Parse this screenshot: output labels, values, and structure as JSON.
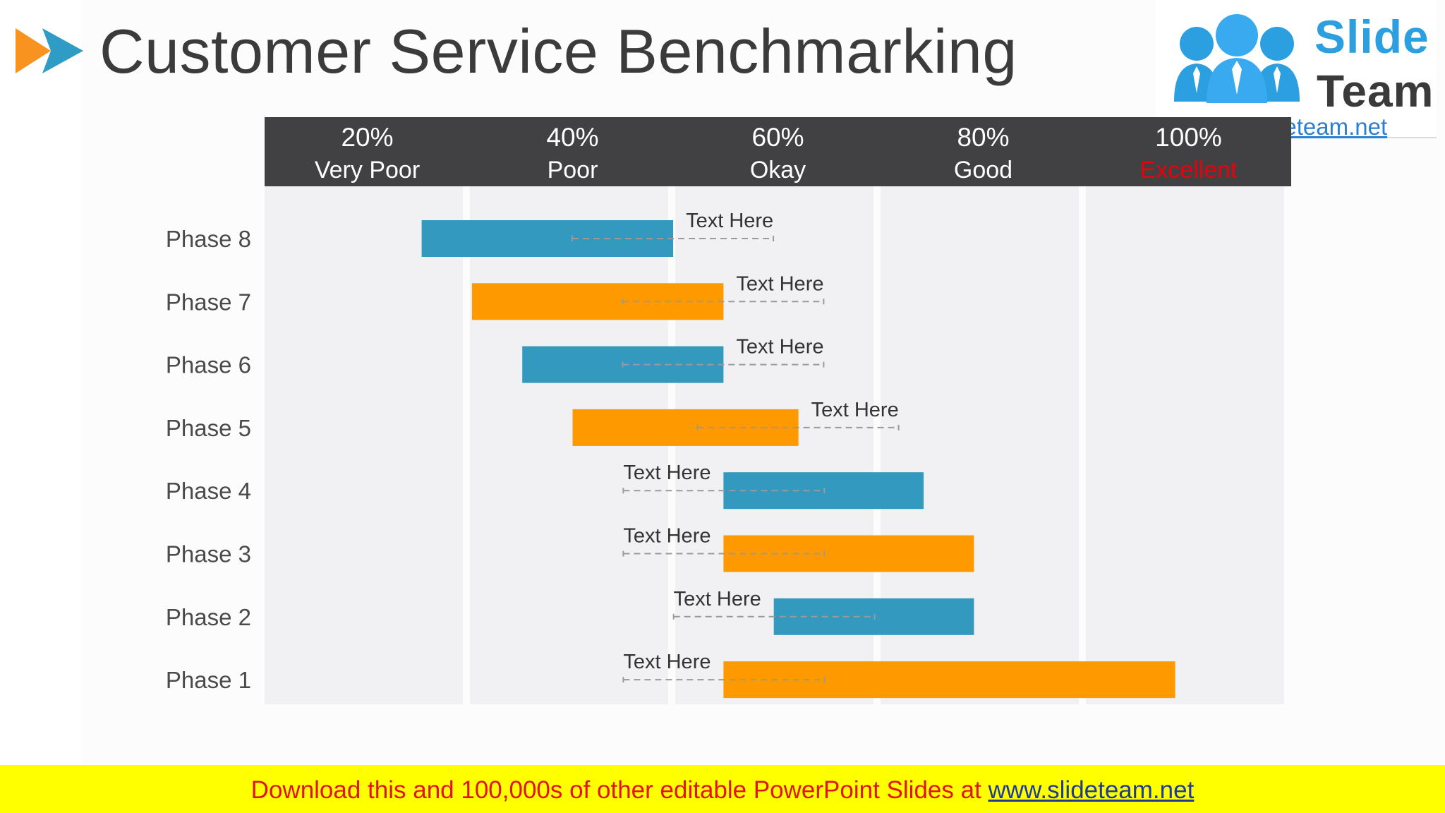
{
  "title": "Customer Service Benchmarking",
  "logo": {
    "word1": "Slide",
    "word2": "Team",
    "url": "www.slideteam.net"
  },
  "colors": {
    "accent_blue": "#3399bf",
    "accent_orange": "#ff9900",
    "header_dark": "#414042",
    "excellent_red": "#e8000b",
    "banner_yellow": "#ffff00"
  },
  "footer": {
    "text": "Download this and 100,000s of other editable PowerPoint Slides at ",
    "link": "www.slideteam.net"
  },
  "chart_data": {
    "type": "bar",
    "orientation": "horizontal",
    "title": "",
    "xlim": [
      0,
      100
    ],
    "columns": [
      {
        "percent": "20%",
        "label": "Very Poor",
        "highlight": false
      },
      {
        "percent": "40%",
        "label": "Poor",
        "highlight": false
      },
      {
        "percent": "60%",
        "label": "Okay",
        "highlight": false
      },
      {
        "percent": "80%",
        "label": "Good",
        "highlight": false
      },
      {
        "percent": "100%",
        "label": "Excellent",
        "highlight": true
      }
    ],
    "categories": [
      "Phase 8",
      "Phase 7",
      "Phase 6",
      "Phase 5",
      "Phase 4",
      "Phase 3",
      "Phase 2",
      "Phase 1"
    ],
    "bars": [
      {
        "phase": "Phase 8",
        "start": 15.3,
        "end": 39.8,
        "color": "blue",
        "label": "Text Here",
        "label_side": "right"
      },
      {
        "phase": "Phase 7",
        "start": 20.2,
        "end": 44.7,
        "color": "orange",
        "label": "Text Here",
        "label_side": "right"
      },
      {
        "phase": "Phase 6",
        "start": 25.1,
        "end": 44.7,
        "color": "blue",
        "label": "Text Here",
        "label_side": "right"
      },
      {
        "phase": "Phase 5",
        "start": 30.0,
        "end": 52.0,
        "color": "orange",
        "label": "Text Here",
        "label_side": "right"
      },
      {
        "phase": "Phase 4",
        "start": 44.7,
        "end": 64.2,
        "color": "blue",
        "label": "Text Here",
        "label_side": "left"
      },
      {
        "phase": "Phase 3",
        "start": 44.7,
        "end": 69.1,
        "color": "orange",
        "label": "Text Here",
        "label_side": "left"
      },
      {
        "phase": "Phase 2",
        "start": 49.6,
        "end": 69.1,
        "color": "blue",
        "label": "Text Here",
        "label_side": "left"
      },
      {
        "phase": "Phase 1",
        "start": 44.7,
        "end": 88.7,
        "color": "orange",
        "label": "Text Here",
        "label_side": "left"
      }
    ]
  }
}
